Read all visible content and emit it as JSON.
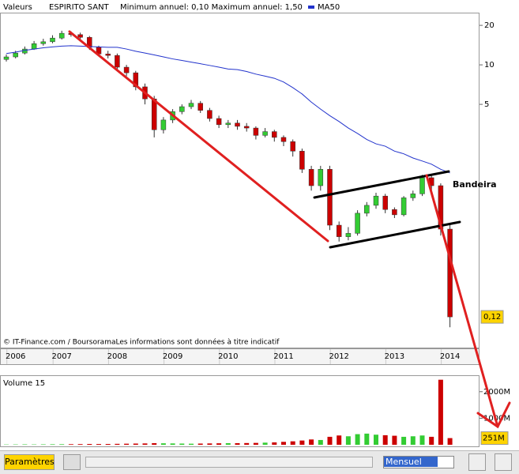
{
  "header": {
    "label": "Valeurs",
    "symbol": "ESPIRITO SANT",
    "range_note": "Minimum annuel: 0,10 Maximum annuel: 1,50"
  },
  "source_note": "© IT-Finance.com / BoursoramaLes informations sont données à titre indicatif",
  "annotation": "Bandeira",
  "chart_data": [
    {
      "type": "candlestick",
      "categories": [
        null,
        "2006",
        null,
        null,
        null,
        null,
        "2007",
        null,
        null,
        null,
        null,
        null,
        "2008",
        null,
        null,
        null,
        null,
        null,
        "2009",
        null,
        null,
        null,
        null,
        null,
        "2010",
        null,
        null,
        null,
        null,
        null,
        "2011",
        null,
        null,
        null,
        null,
        null,
        "2012",
        null,
        null,
        null,
        null,
        null,
        "2013",
        null,
        null,
        null,
        null,
        null,
        "2014"
      ],
      "open": [
        11.0,
        11.5,
        12.3,
        13.2,
        14.5,
        15.0,
        16.0,
        17.4,
        17.0,
        16.2,
        13.6,
        12.1,
        11.8,
        9.6,
        8.7,
        6.8,
        5.5,
        3.2,
        3.8,
        4.4,
        4.8,
        5.1,
        4.5,
        3.9,
        3.5,
        3.6,
        3.4,
        3.3,
        2.9,
        3.1,
        2.8,
        2.6,
        2.2,
        1.6,
        1.2,
        1.6,
        0.6,
        0.49,
        0.52,
        0.74,
        0.85,
        1.0,
        0.79,
        0.72,
        0.97,
        1.04,
        1.38,
        1.2,
        0.56
      ],
      "high": [
        12.0,
        12.8,
        13.8,
        15.2,
        15.8,
        16.8,
        18.2,
        18.0,
        17.6,
        16.6,
        14.0,
        12.8,
        12.2,
        10.0,
        9.0,
        7.2,
        5.8,
        4.0,
        4.6,
        5.0,
        5.4,
        5.3,
        4.7,
        4.1,
        3.8,
        3.8,
        3.6,
        3.4,
        3.3,
        3.2,
        2.9,
        2.7,
        2.3,
        1.7,
        1.7,
        1.7,
        0.64,
        0.58,
        0.78,
        0.9,
        1.06,
        1.04,
        0.82,
        1.0,
        1.1,
        1.45,
        1.45,
        1.25,
        0.62
      ],
      "low": [
        10.6,
        11.2,
        12.0,
        13.0,
        14.0,
        14.6,
        15.6,
        16.4,
        15.6,
        13.0,
        11.6,
        11.2,
        9.2,
        8.2,
        6.4,
        5.0,
        2.8,
        3.0,
        3.6,
        4.2,
        4.6,
        4.3,
        3.7,
        3.3,
        3.3,
        3.2,
        3.1,
        2.7,
        2.8,
        2.6,
        2.4,
        2.0,
        1.5,
        1.1,
        1.1,
        0.55,
        0.45,
        0.46,
        0.5,
        0.7,
        0.8,
        0.74,
        0.68,
        0.7,
        0.92,
        1.0,
        1.1,
        0.5,
        0.1
      ],
      "close": [
        11.5,
        12.3,
        13.2,
        14.5,
        15.0,
        16.0,
        17.4,
        17.0,
        16.2,
        13.6,
        12.1,
        11.8,
        9.6,
        8.7,
        6.8,
        5.5,
        3.2,
        3.8,
        4.4,
        4.8,
        5.1,
        4.5,
        3.9,
        3.5,
        3.6,
        3.4,
        3.3,
        2.9,
        3.1,
        2.8,
        2.6,
        2.2,
        1.6,
        1.2,
        1.6,
        0.6,
        0.49,
        0.52,
        0.74,
        0.85,
        1.0,
        0.79,
        0.72,
        0.97,
        1.04,
        1.38,
        1.2,
        0.56,
        0.12
      ],
      "up_color": "#33cc33",
      "down_color": "#cc0000",
      "series": [
        {
          "name": "MA50",
          "color": "#2233cc",
          "values": [
            12.2,
            12.5,
            12.9,
            13.2,
            13.5,
            13.7,
            13.9,
            14.0,
            13.9,
            13.8,
            13.7,
            13.6,
            13.6,
            13.2,
            12.7,
            12.3,
            11.9,
            11.5,
            11.1,
            10.8,
            10.5,
            10.2,
            9.9,
            9.6,
            9.3,
            9.2,
            8.9,
            8.5,
            8.2,
            7.9,
            7.4,
            6.7,
            6.0,
            5.2,
            4.6,
            4.1,
            3.7,
            3.3,
            3.0,
            2.7,
            2.5,
            2.4,
            2.2,
            2.1,
            1.95,
            1.85,
            1.75,
            1.6,
            1.5
          ]
        }
      ],
      "log_scale": true,
      "ylim": [
        0.07,
        25
      ],
      "yticks": [
        5,
        10,
        20
      ],
      "last_value": {
        "value": 0.12,
        "label": "0,12"
      }
    },
    {
      "type": "bar",
      "title": "Volume 15",
      "values": [
        10,
        12,
        15,
        12,
        15,
        18,
        20,
        22,
        25,
        30,
        28,
        30,
        35,
        40,
        45,
        50,
        60,
        55,
        50,
        45,
        40,
        45,
        50,
        55,
        60,
        60,
        65,
        70,
        80,
        90,
        110,
        130,
        160,
        200,
        180,
        300,
        350,
        320,
        400,
        420,
        380,
        360,
        340,
        300,
        320,
        350,
        300,
        2450,
        251
      ],
      "ylim": [
        0,
        2500
      ],
      "yticks": [
        {
          "value": 1000,
          "label": "1000M"
        },
        {
          "value": 2000,
          "label": "2000M"
        }
      ],
      "last_value": {
        "value": 251,
        "label": "251M"
      }
    }
  ],
  "toolbar": {
    "settings_button": "Paramètres",
    "period": "Mensuel"
  }
}
